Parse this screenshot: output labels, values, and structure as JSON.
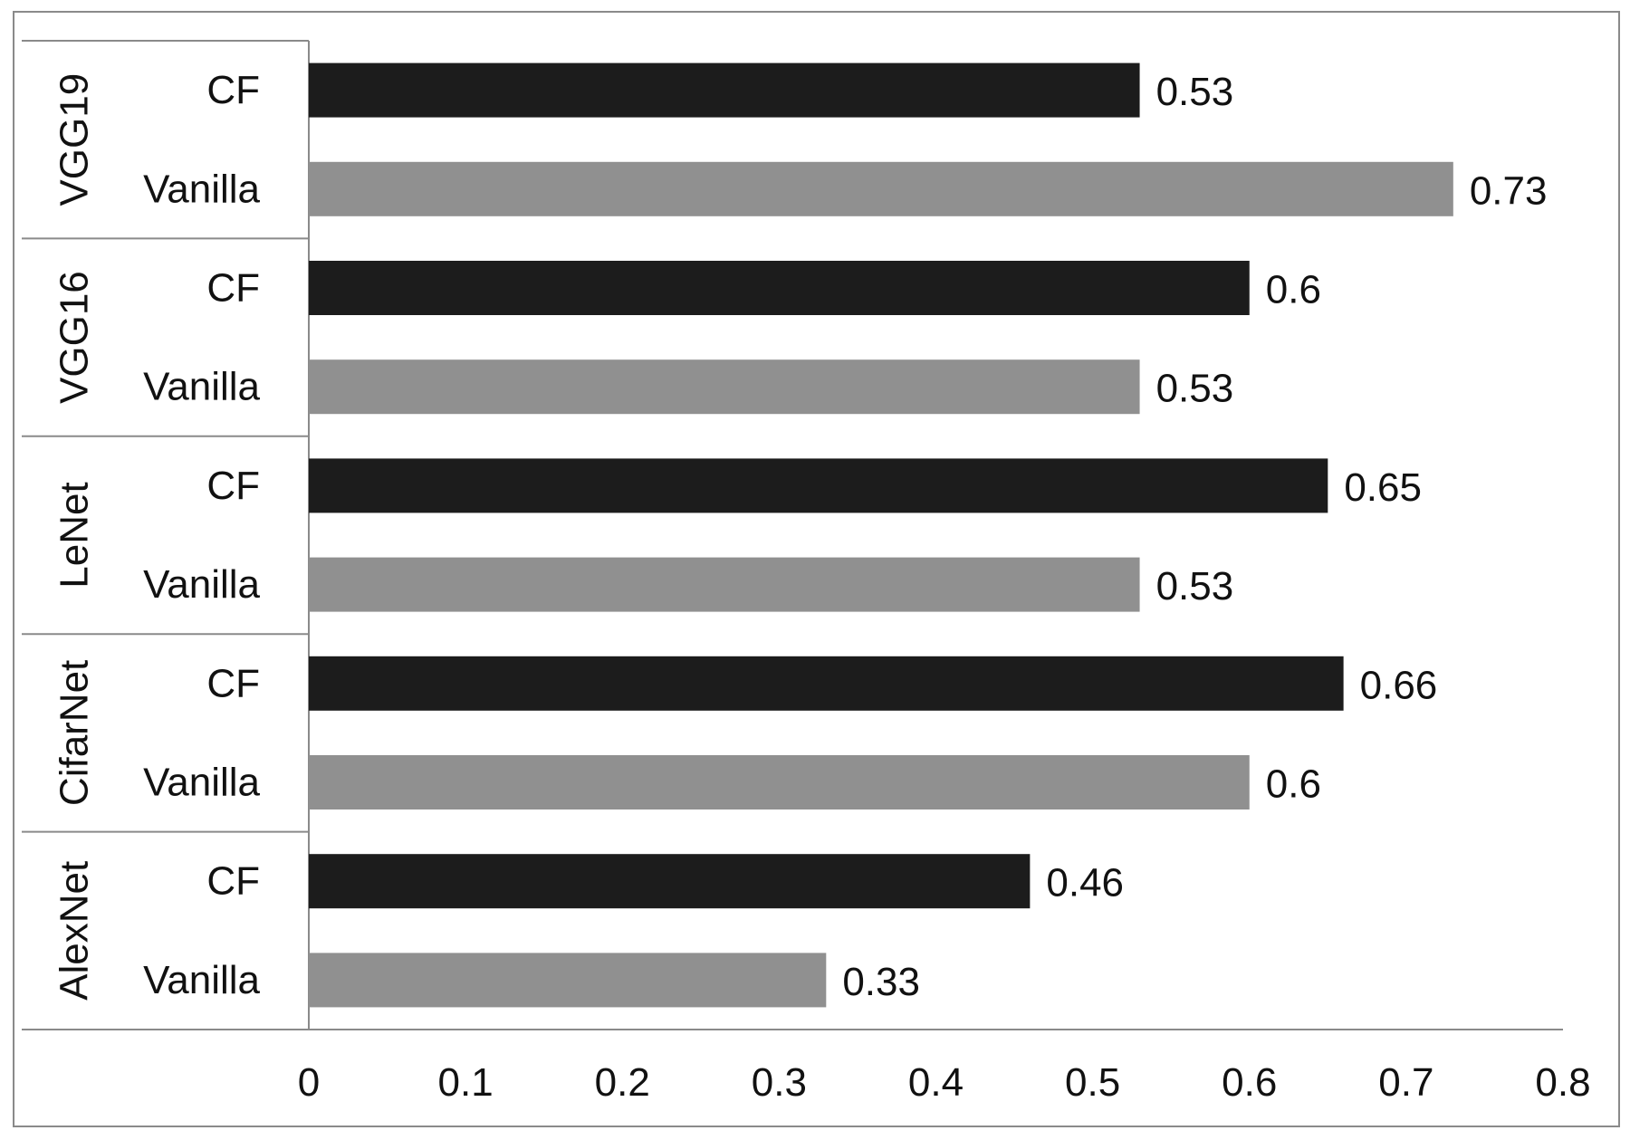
{
  "chart_data": {
    "type": "bar",
    "orientation": "horizontal",
    "groups": [
      {
        "name": "VGG19",
        "bars": [
          {
            "label": "CF",
            "value": 0.53
          },
          {
            "label": "Vanilla",
            "value": 0.73
          }
        ]
      },
      {
        "name": "VGG16",
        "bars": [
          {
            "label": "CF",
            "value": 0.6
          },
          {
            "label": "Vanilla",
            "value": 0.53
          }
        ]
      },
      {
        "name": "LeNet",
        "bars": [
          {
            "label": "CF",
            "value": 0.65
          },
          {
            "label": "Vanilla",
            "value": 0.53
          }
        ]
      },
      {
        "name": "CifarNet",
        "bars": [
          {
            "label": "CF",
            "value": 0.66
          },
          {
            "label": "Vanilla",
            "value": 0.6
          }
        ]
      },
      {
        "name": "AlexNet",
        "bars": [
          {
            "label": "CF",
            "value": 0.46
          },
          {
            "label": "Vanilla",
            "value": 0.33
          }
        ]
      }
    ],
    "data_labels": [
      [
        "0.53",
        "0.73"
      ],
      [
        "0.6",
        "0.53"
      ],
      [
        "0.65",
        "0.53"
      ],
      [
        "0.66",
        "0.6"
      ],
      [
        "0.46",
        "0.33"
      ]
    ],
    "xlim": [
      0,
      0.8
    ],
    "xticks": [
      "0",
      "0.1",
      "0.2",
      "0.3",
      "0.4",
      "0.5",
      "0.6",
      "0.7",
      "0.8"
    ],
    "colors": {
      "CF": "#1c1c1c",
      "Vanilla": "#909090"
    },
    "grid": false,
    "legend": "none",
    "title": "",
    "xlabel": "",
    "ylabel": ""
  }
}
